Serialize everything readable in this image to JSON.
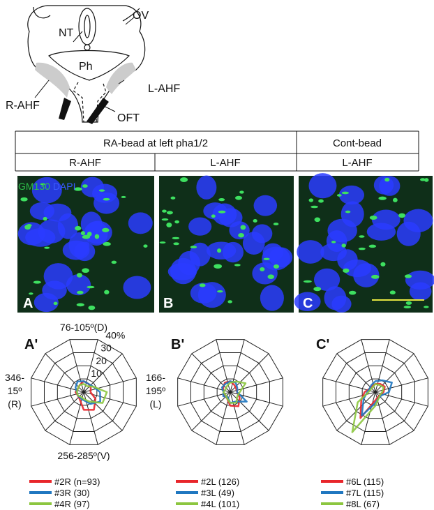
{
  "diagram": {
    "labels": [
      "NT",
      "OV",
      "Ph",
      "R-AHF",
      "L-AHF",
      "OFT"
    ]
  },
  "table": {
    "header": [
      "RA-bead at left pha1/2",
      "Cont-bead"
    ],
    "subheader": [
      "R-AHF",
      "L-AHF",
      "L-AHF"
    ]
  },
  "images": {
    "stain": {
      "marker": "GM130",
      "nuclear": "DAPI"
    },
    "panels": [
      "A",
      "B",
      "C"
    ]
  },
  "chart_data": [
    {
      "type": "radar",
      "panel": "A'",
      "tick_labels": true,
      "categories": [
        "346-15º (R)",
        null,
        null,
        "76-105º(D)",
        null,
        null,
        "166-195º (L)",
        null,
        null,
        "256-285º(V)",
        null,
        null
      ],
      "ylim": [
        0,
        40
      ],
      "yticks": [
        10,
        20,
        30,
        {
          "value": 40,
          "label": "40%"
        }
      ],
      "series": [
        {
          "name": "#2R (n=93)",
          "color": "#e8262b",
          "values": [
            6,
            5,
            6,
            8,
            7,
            6,
            5,
            10,
            15,
            13,
            6,
            5
          ]
        },
        {
          "name": "#3R (30)",
          "color": "#1f77c0",
          "values": [
            5,
            7,
            9,
            8,
            7,
            8,
            12,
            14,
            10,
            6,
            5,
            5
          ]
        },
        {
          "name": "#4R (97)",
          "color": "#8cc63f",
          "values": [
            5,
            5,
            6,
            6,
            5,
            8,
            17,
            16,
            8,
            5,
            4,
            5
          ]
        }
      ]
    },
    {
      "type": "radar",
      "panel": "B'",
      "tick_labels": false,
      "categories": [
        null,
        null,
        null,
        null,
        null,
        null,
        null,
        null,
        null,
        null,
        null,
        null
      ],
      "ylim": [
        0,
        40
      ],
      "yticks": [
        10,
        20,
        30,
        40
      ],
      "series": [
        {
          "name": "#2L (126)",
          "color": "#e8262b",
          "values": [
            5,
            6,
            8,
            8,
            6,
            5,
            5,
            8,
            12,
            10,
            5,
            5
          ]
        },
        {
          "name": "#3L (49)",
          "color": "#1f77c0",
          "values": [
            5,
            7,
            7,
            8,
            8,
            6,
            5,
            14,
            8,
            8,
            4,
            6
          ]
        },
        {
          "name": "#4L (101)",
          "color": "#8cc63f",
          "values": [
            5,
            4,
            5,
            7,
            9,
            13,
            7,
            6,
            9,
            8,
            5,
            4
          ]
        }
      ]
    },
    {
      "type": "radar",
      "panel": "C'",
      "tick_labels": false,
      "categories": [
        null,
        null,
        null,
        null,
        null,
        null,
        null,
        null,
        null,
        null,
        null,
        null
      ],
      "ylim": [
        0,
        40
      ],
      "yticks": [
        10,
        20,
        30,
        40
      ],
      "series": [
        {
          "name": "#6L (115)",
          "color": "#e8262b",
          "values": [
            8,
            5,
            5,
            6,
            7,
            8,
            6,
            4,
            4,
            6,
            22,
            12
          ]
        },
        {
          "name": "#7L (115)",
          "color": "#1f77c0",
          "values": [
            6,
            5,
            6,
            8,
            10,
            14,
            10,
            5,
            5,
            8,
            20,
            10
          ]
        },
        {
          "name": "#8L (67)",
          "color": "#8cc63f",
          "values": [
            5,
            4,
            4,
            6,
            6,
            7,
            5,
            4,
            5,
            10,
            34,
            15
          ]
        }
      ]
    }
  ]
}
